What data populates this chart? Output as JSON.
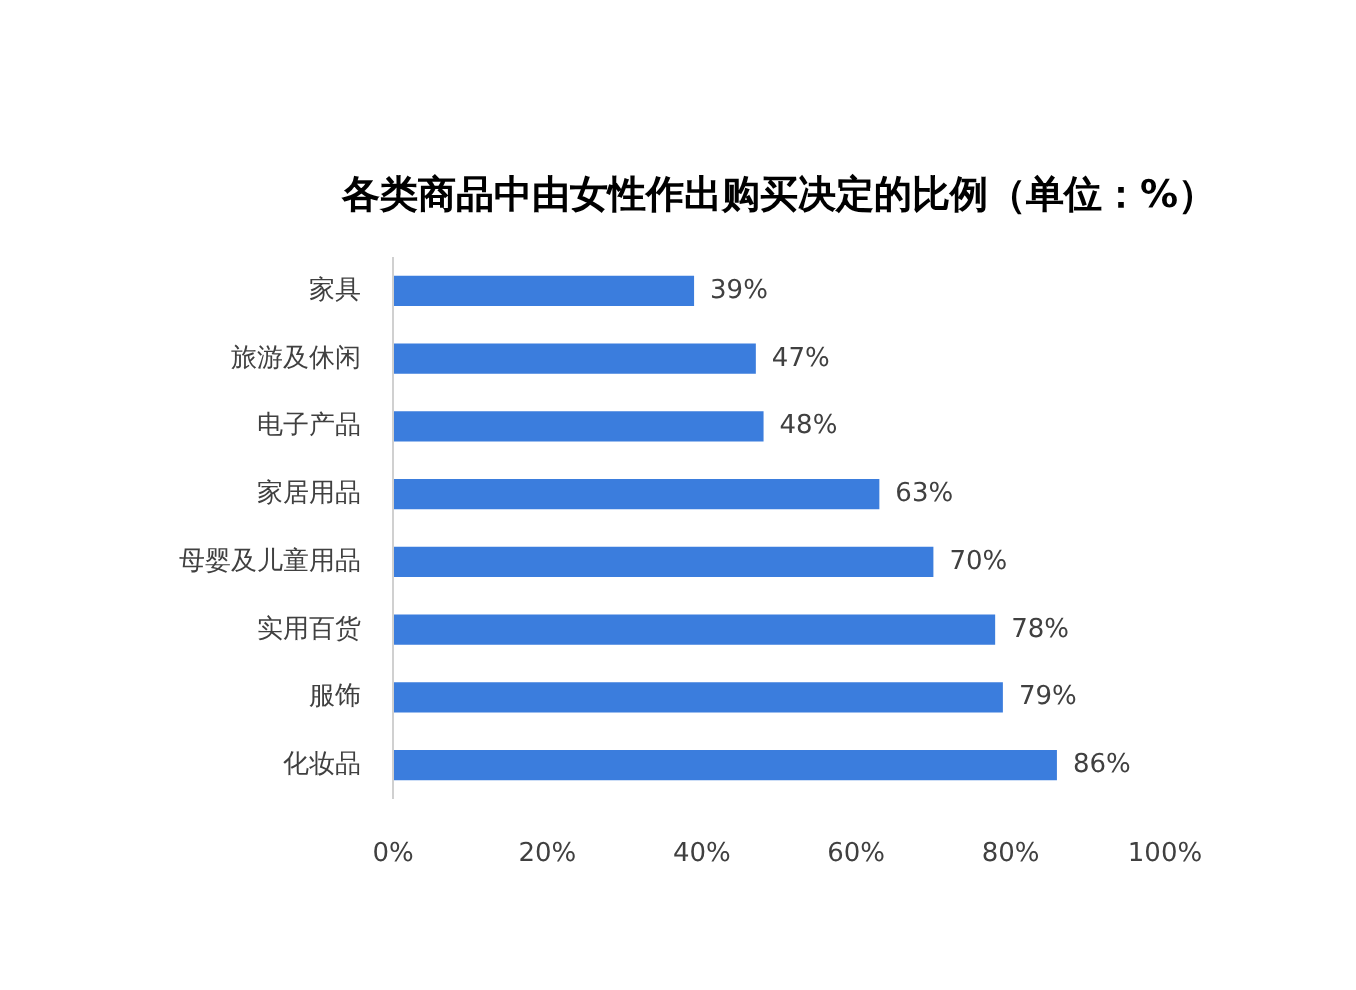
{
  "chart_data": {
    "type": "bar",
    "orientation": "horizontal",
    "title": "各类商品中由女性作出购买决定的比例（单位：%）",
    "categories": [
      "家具",
      "旅游及休闲",
      "电子产品",
      "家居用品",
      "母婴及儿童用品",
      "实用百货",
      "服饰",
      "化妆品"
    ],
    "values": [
      39,
      47,
      48,
      63,
      70,
      78,
      79,
      86
    ],
    "color": "#3b7ddd",
    "value_labels": [
      "39%",
      "47%",
      "48%",
      "63%",
      "70%",
      "78%",
      "79%",
      "86%"
    ],
    "xlim": [
      0,
      100
    ],
    "xticks": [
      {
        "value": 0,
        "label": "0%"
      },
      {
        "value": 20,
        "label": "20%"
      },
      {
        "value": 40,
        "label": "40%"
      },
      {
        "value": 60,
        "label": "60%"
      },
      {
        "value": 80,
        "label": "80%"
      },
      {
        "value": 100,
        "label": "100%"
      }
    ]
  }
}
